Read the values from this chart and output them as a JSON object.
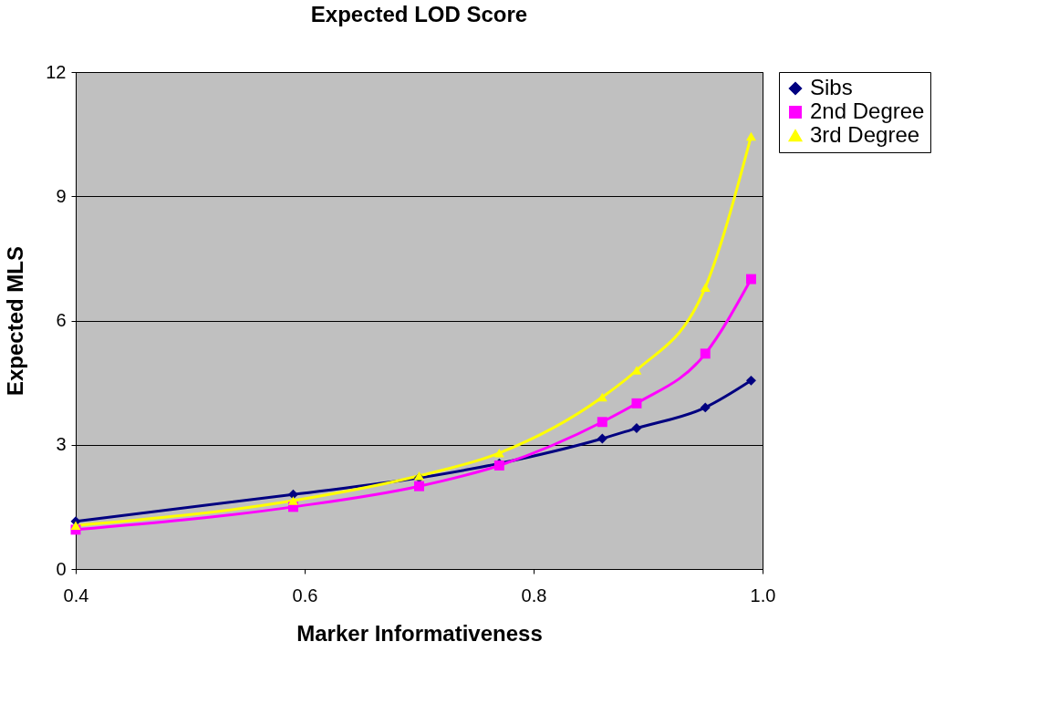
{
  "chart_data": {
    "type": "line",
    "title": "Expected LOD Score",
    "xlabel": "Marker Informativeness",
    "ylabel": "Expected MLS",
    "x": [
      0.4,
      0.59,
      0.7,
      0.77,
      0.86,
      0.89,
      0.95,
      0.99
    ],
    "series": [
      {
        "name": "Sibs",
        "color": "#000080",
        "marker": "diamond",
        "values": [
          1.15,
          1.8,
          2.2,
          2.55,
          3.15,
          3.4,
          3.9,
          4.55
        ]
      },
      {
        "name": "2nd Degree",
        "color": "#ff00ff",
        "marker": "square",
        "values": [
          0.95,
          1.5,
          2.0,
          2.5,
          3.55,
          4.0,
          5.2,
          7.0
        ]
      },
      {
        "name": "3rd Degree",
        "color": "#ffff00",
        "marker": "triangle",
        "values": [
          1.05,
          1.65,
          2.25,
          2.8,
          4.15,
          4.8,
          6.8,
          10.45
        ]
      }
    ],
    "xlim": [
      0.4,
      1.0
    ],
    "xticks": [
      0.4,
      0.6,
      0.8,
      {
        "value": 1.0,
        "label": "1.0"
      }
    ],
    "ylim": [
      0,
      12
    ],
    "yticks": [
      0,
      3,
      6,
      9,
      12
    ],
    "grid": "y",
    "legend": "right"
  }
}
